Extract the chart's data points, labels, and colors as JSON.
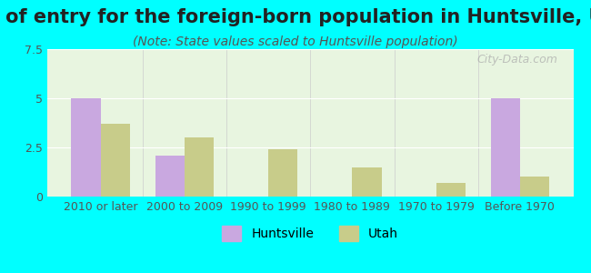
{
  "title": "Year of entry for the foreign-born population in Huntsville, Utah",
  "subtitle": "(Note: State values scaled to Huntsville population)",
  "categories": [
    "2010 or later",
    "2000 to 2009",
    "1990 to 1999",
    "1980 to 1989",
    "1970 to 1979",
    "Before 1970"
  ],
  "huntsville_values": [
    5.0,
    2.1,
    0.0,
    0.0,
    0.0,
    5.0
  ],
  "utah_values": [
    3.7,
    3.0,
    2.4,
    1.5,
    0.7,
    1.0
  ],
  "huntsville_color": "#c9a8e0",
  "utah_color": "#c8cc8a",
  "ylim": [
    0,
    7.5
  ],
  "yticks": [
    0,
    2.5,
    5,
    7.5
  ],
  "background_color": "#00FFFF",
  "plot_bg_color_top": "#e8f5e0",
  "plot_bg_color_bottom": "#f5fff5",
  "watermark": "City-Data.com",
  "title_fontsize": 15,
  "subtitle_fontsize": 10,
  "tick_fontsize": 9,
  "legend_fontsize": 10,
  "bar_width": 0.35
}
